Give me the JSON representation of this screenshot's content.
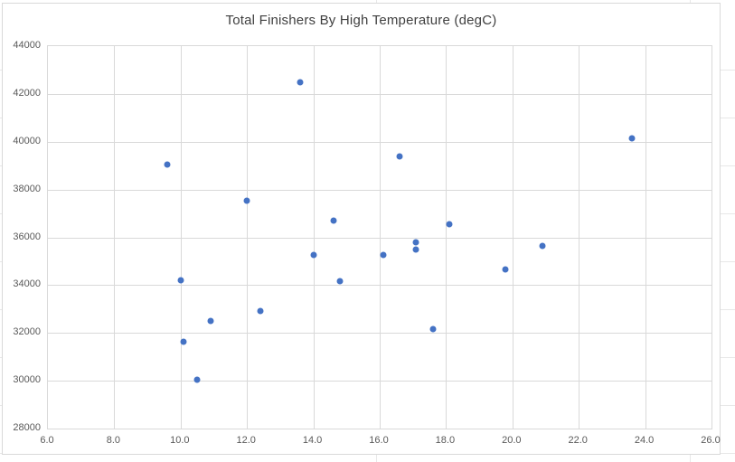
{
  "chart_data": {
    "type": "scatter",
    "title": "Total Finishers By High Temperature (degC)",
    "xlabel": "",
    "ylabel": "",
    "xlim": [
      6.0,
      26.0
    ],
    "ylim": [
      28000,
      44000
    ],
    "x_tick_labels": [
      "6.0",
      "8.0",
      "10.0",
      "12.0",
      "14.0",
      "16.0",
      "18.0",
      "20.0",
      "22.0",
      "24.0",
      "26.0"
    ],
    "y_tick_labels": [
      "28000",
      "30000",
      "32000",
      "34000",
      "36000",
      "38000",
      "40000",
      "42000",
      "44000"
    ],
    "grid": "on",
    "legend": "none",
    "marker_color": "#4472C4",
    "gridline_color": "#D9D9D9",
    "axis_text_color": "#595959",
    "title_color": "#3F3F3F",
    "points": [
      {
        "x": 9.6,
        "y": 39050
      },
      {
        "x": 10.0,
        "y": 34200
      },
      {
        "x": 10.1,
        "y": 31650
      },
      {
        "x": 10.5,
        "y": 30050
      },
      {
        "x": 10.9,
        "y": 32500
      },
      {
        "x": 12.0,
        "y": 37550
      },
      {
        "x": 12.4,
        "y": 32900
      },
      {
        "x": 13.6,
        "y": 42500
      },
      {
        "x": 14.0,
        "y": 35250
      },
      {
        "x": 14.6,
        "y": 36700
      },
      {
        "x": 14.8,
        "y": 34150
      },
      {
        "x": 16.1,
        "y": 35250
      },
      {
        "x": 16.6,
        "y": 39400
      },
      {
        "x": 17.1,
        "y": 35800
      },
      {
        "x": 17.1,
        "y": 35500
      },
      {
        "x": 17.6,
        "y": 32150
      },
      {
        "x": 18.1,
        "y": 36550
      },
      {
        "x": 19.8,
        "y": 34650
      },
      {
        "x": 20.9,
        "y": 35650
      },
      {
        "x": 23.6,
        "y": 40150
      }
    ]
  }
}
